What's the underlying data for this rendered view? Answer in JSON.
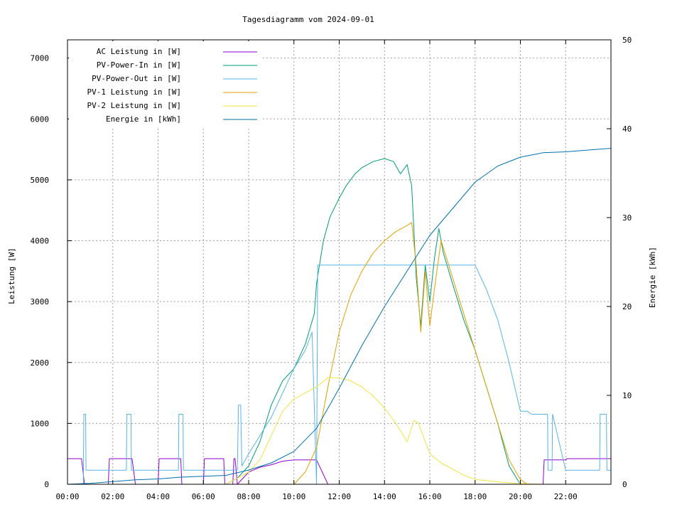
{
  "chart_data": {
    "type": "line",
    "title": "Tagesdiagramm vom 2024-09-01",
    "ylabel": "Leistung [W]",
    "y2label": "Energie [kWh]",
    "xlim": [
      0,
      24
    ],
    "ylim": [
      0,
      7300
    ],
    "y2lim": [
      0,
      50
    ],
    "x_ticks": [
      0,
      2,
      4,
      6,
      8,
      10,
      12,
      14,
      16,
      18,
      20,
      22
    ],
    "x_tick_labels": [
      "00:00",
      "02:00",
      "04:00",
      "06:00",
      "08:00",
      "10:00",
      "12:00",
      "14:00",
      "16:00",
      "18:00",
      "20:00",
      "22:00"
    ],
    "y_ticks": [
      0,
      1000,
      2000,
      3000,
      4000,
      5000,
      6000,
      7000
    ],
    "y_tick_labels": [
      "0",
      "1000",
      "2000",
      "3000",
      "4000",
      "5000",
      "6000",
      "7000"
    ],
    "y2_ticks": [
      0,
      10,
      20,
      30,
      40,
      50
    ],
    "y2_tick_labels": [
      "0",
      "10",
      "20",
      "30",
      "40",
      "50"
    ],
    "grid": true,
    "legend_position": "top-left",
    "series": [
      {
        "name": "AC Leistung in [W]",
        "color": "#9400d3",
        "axis": "left",
        "x": [
          0,
          0.5,
          0.6,
          0.62,
          0.75,
          1.0,
          1.8,
          1.85,
          2.0,
          2.8,
          2.85,
          3.0,
          4.0,
          4.05,
          4.2,
          5.0,
          5.05,
          5.2,
          6.0,
          6.05,
          6.2,
          6.9,
          6.95,
          7.3,
          7.35,
          7.4,
          7.5,
          8.0,
          8.5,
          9.0,
          9.5,
          10.0,
          10.5,
          11.0,
          11.5,
          21.0,
          21.05,
          21.2,
          22.0,
          22.05,
          22.2,
          23.0,
          23.5,
          24.0
        ],
        "y": [
          420,
          420,
          420,
          420,
          0,
          0,
          0,
          420,
          420,
          420,
          420,
          0,
          0,
          420,
          420,
          420,
          0,
          0,
          0,
          420,
          420,
          420,
          0,
          0,
          420,
          420,
          0,
          200,
          280,
          320,
          380,
          400,
          400,
          400,
          0,
          0,
          400,
          400,
          400,
          420,
          420,
          420,
          420,
          420
        ]
      },
      {
        "name": "PV-Power-In in [W]",
        "color": "#009e73",
        "axis": "left",
        "x": [
          0,
          7.0,
          7.5,
          8.0,
          8.5,
          9.0,
          9.5,
          10.0,
          10.5,
          10.9,
          11.0,
          11.3,
          11.6,
          12.0,
          12.3,
          12.7,
          13.0,
          13.5,
          14.0,
          14.4,
          14.7,
          15.0,
          15.2,
          15.4,
          15.6,
          15.8,
          16.0,
          16.2,
          16.4,
          16.6,
          17.0,
          17.5,
          18.0,
          18.5,
          19.0,
          19.5,
          20.0,
          20.2,
          20.5,
          24.0
        ],
        "y": [
          0,
          0,
          100,
          300,
          700,
          1300,
          1700,
          1900,
          2300,
          2800,
          3300,
          4000,
          4400,
          4700,
          4900,
          5100,
          5200,
          5300,
          5350,
          5300,
          5100,
          5250,
          4900,
          3400,
          2600,
          3600,
          3000,
          3700,
          4200,
          3800,
          3300,
          2700,
          2200,
          1600,
          1000,
          300,
          0,
          0,
          0,
          0
        ]
      },
      {
        "name": "PV-Power-Out in [W]",
        "color": "#56b4e9",
        "axis": "left",
        "x": [
          0,
          0.7,
          0.72,
          0.8,
          0.82,
          1.0,
          1.5,
          2.0,
          2.6,
          2.62,
          2.8,
          2.82,
          3.0,
          4.0,
          4.9,
          4.92,
          5.1,
          5.12,
          5.3,
          6.0,
          7.0,
          7.5,
          7.55,
          7.65,
          7.7,
          8.0,
          8.5,
          9.0,
          9.5,
          10.0,
          10.5,
          10.8,
          11.0,
          11.05,
          11.2,
          12.0,
          13.0,
          14.0,
          15.0,
          16.0,
          17.0,
          18.0,
          18.5,
          19.0,
          19.5,
          20.0,
          20.3,
          20.5,
          21.0,
          21.2,
          21.22,
          21.4,
          21.42,
          22.0,
          23.0,
          23.5,
          23.52,
          23.8,
          23.82,
          24.0
        ],
        "y": [
          0,
          0,
          1150,
          1150,
          230,
          230,
          230,
          230,
          230,
          1150,
          1150,
          230,
          230,
          230,
          230,
          1150,
          1150,
          230,
          230,
          230,
          230,
          230,
          1300,
          1300,
          300,
          500,
          800,
          1100,
          1500,
          1900,
          2200,
          2500,
          0,
          3600,
          3600,
          3600,
          3600,
          3600,
          3600,
          3600,
          3600,
          3600,
          3200,
          2700,
          2000,
          1200,
          1200,
          1150,
          1150,
          1150,
          230,
          230,
          1150,
          230,
          230,
          230,
          1150,
          1150,
          230,
          230
        ]
      },
      {
        "name": "PV-1 Leistung in [W]",
        "color": "#e69f00",
        "axis": "left",
        "x": [
          0,
          8.0,
          9.0,
          10.0,
          10.5,
          11.0,
          11.5,
          12.0,
          12.5,
          13.0,
          13.5,
          14.0,
          14.5,
          15.0,
          15.2,
          15.4,
          15.6,
          15.8,
          16.0,
          16.2,
          16.5,
          17.0,
          17.5,
          18.0,
          18.5,
          19.0,
          19.5,
          20.0,
          20.3,
          24.0
        ],
        "y": [
          0,
          0,
          0,
          0,
          200,
          600,
          1600,
          2500,
          3100,
          3500,
          3800,
          4000,
          4150,
          4250,
          4300,
          3600,
          2500,
          3500,
          2600,
          3200,
          4000,
          3400,
          2800,
          2200,
          1600,
          1000,
          400,
          80,
          0,
          0
        ]
      },
      {
        "name": "PV-2 Leistung in [W]",
        "color": "#f0e442",
        "axis": "left",
        "x": [
          0,
          7.0,
          7.5,
          8.0,
          8.5,
          9.0,
          9.5,
          10.0,
          10.5,
          11.0,
          11.5,
          12.0,
          12.5,
          13.0,
          13.5,
          14.0,
          14.5,
          15.0,
          15.3,
          15.5,
          15.8,
          16.0,
          16.5,
          17.0,
          17.5,
          18.0,
          19.0,
          20.0,
          21.0,
          22.0,
          24.0
        ],
        "y": [
          0,
          0,
          100,
          200,
          400,
          800,
          1200,
          1400,
          1500,
          1600,
          1750,
          1750,
          1700,
          1600,
          1450,
          1250,
          1000,
          700,
          1050,
          1000,
          700,
          500,
          350,
          250,
          150,
          80,
          40,
          10,
          0,
          0,
          0
        ]
      },
      {
        "name": "Energie in [kWh]",
        "color": "#0072b2",
        "axis": "right",
        "x": [
          0,
          1,
          2,
          3,
          4,
          5,
          6,
          7,
          8,
          9,
          10,
          11,
          12,
          13,
          14,
          15,
          16,
          17,
          18,
          19,
          20,
          21,
          22,
          23,
          24
        ],
        "y": [
          0,
          0.1,
          0.3,
          0.5,
          0.6,
          0.8,
          0.9,
          1.0,
          1.6,
          2.4,
          3.7,
          6.3,
          10.8,
          15.6,
          20.0,
          24.0,
          28.0,
          31.0,
          34.0,
          35.8,
          36.8,
          37.3,
          37.4,
          37.6,
          37.8
        ]
      }
    ]
  }
}
